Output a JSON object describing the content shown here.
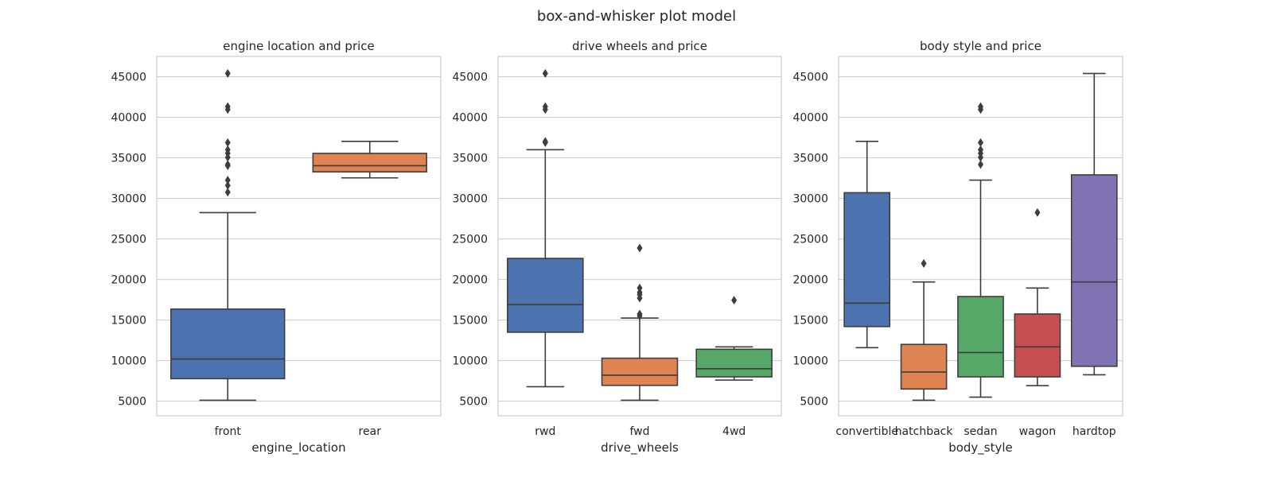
{
  "suptitle": "box-and-whisker plot model",
  "chart_data": [
    {
      "type": "box",
      "title": "engine location and price",
      "xlabel": "engine_location",
      "ylabel": "",
      "ylim": [
        3200,
        47500
      ],
      "yticks": [
        5000,
        10000,
        15000,
        20000,
        25000,
        30000,
        35000,
        40000,
        45000
      ],
      "grid": true,
      "categories": [
        "front",
        "rear"
      ],
      "boxes": [
        {
          "category": "front",
          "color": "#4c72b0",
          "whisker_low": 5118,
          "q1": 7775,
          "median": 10198,
          "q3": 16350,
          "whisker_high": 28248,
          "outliers": [
            30760,
            31600,
            32250,
            34028,
            34184,
            35056,
            35550,
            36000,
            36880,
            40960,
            41315,
            45400
          ]
        },
        {
          "category": "rear",
          "color": "#dd8452",
          "whisker_low": 32528,
          "q1": 33275,
          "median": 34028,
          "q3": 35550,
          "whisker_high": 37028,
          "outliers": []
        }
      ]
    },
    {
      "type": "box",
      "title": "drive wheels and price",
      "xlabel": "drive_wheels",
      "ylabel": "",
      "ylim": [
        3200,
        47500
      ],
      "yticks": [
        5000,
        10000,
        15000,
        20000,
        25000,
        30000,
        35000,
        40000,
        45000
      ],
      "grid": true,
      "categories": [
        "rwd",
        "fwd",
        "4wd"
      ],
      "boxes": [
        {
          "category": "rwd",
          "color": "#4c72b0",
          "whisker_low": 6785,
          "q1": 13500,
          "median": 16900,
          "q3": 22600,
          "whisker_high": 36000,
          "outliers": [
            36880,
            37028,
            40960,
            41315,
            45400
          ]
        },
        {
          "category": "fwd",
          "color": "#dd8452",
          "whisker_low": 5118,
          "q1": 6950,
          "median": 8200,
          "q3": 10300,
          "whisker_high": 15250,
          "outliers": [
            15510,
            15750,
            17700,
            18150,
            18420,
            18950,
            23875
          ]
        },
        {
          "category": "4wd",
          "color": "#55a868",
          "whisker_low": 7603,
          "q1": 8000,
          "median": 9000,
          "q3": 11400,
          "whisker_high": 11700,
          "outliers": [
            17450
          ]
        }
      ]
    },
    {
      "type": "box",
      "title": "body style and price",
      "xlabel": "body_style",
      "ylabel": "",
      "ylim": [
        3200,
        47500
      ],
      "yticks": [
        5000,
        10000,
        15000,
        20000,
        25000,
        30000,
        35000,
        40000,
        45000
      ],
      "grid": true,
      "categories": [
        "convertible",
        "hatchback",
        "sedan",
        "wagon",
        "hardtop"
      ],
      "boxes": [
        {
          "category": "convertible",
          "color": "#4c72b0",
          "whisker_low": 11595,
          "q1": 14200,
          "median": 17085,
          "q3": 30700,
          "whisker_high": 37028,
          "outliers": []
        },
        {
          "category": "hatchback",
          "color": "#dd8452",
          "whisker_low": 5118,
          "q1": 6500,
          "median": 8600,
          "q3": 12000,
          "whisker_high": 19700,
          "outliers": [
            21980
          ]
        },
        {
          "category": "sedan",
          "color": "#55a868",
          "whisker_low": 5499,
          "q1": 8000,
          "median": 11000,
          "q3": 17900,
          "whisker_high": 32250,
          "outliers": [
            34184,
            35056,
            35550,
            36000,
            36880,
            40960,
            41315
          ]
        },
        {
          "category": "wagon",
          "color": "#c44e52",
          "whisker_low": 6918,
          "q1": 8000,
          "median": 11700,
          "q3": 15750,
          "whisker_high": 18950,
          "outliers": [
            28248
          ]
        },
        {
          "category": "hardtop",
          "color": "#8172b3",
          "whisker_low": 8249,
          "q1": 9300,
          "median": 19700,
          "q3": 32900,
          "whisker_high": 45400,
          "outliers": []
        }
      ]
    }
  ]
}
